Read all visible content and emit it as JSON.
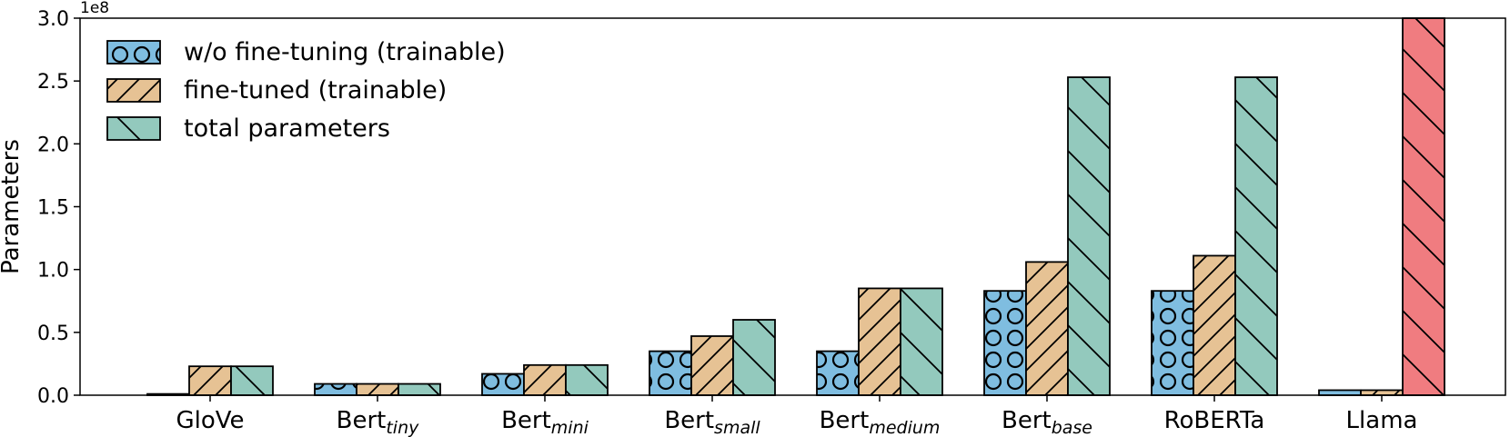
{
  "chart_data": {
    "type": "bar",
    "ylabel": "Parameters",
    "y_offset_label": "1e8",
    "ylim": [
      0,
      3.0
    ],
    "yticks": [
      "0.0",
      "0.5",
      "1.0",
      "1.5",
      "2.0",
      "2.5",
      "3.0"
    ],
    "grid": false,
    "legend_position": "top-left",
    "categories": [
      {
        "base": "GloVe",
        "sub": ""
      },
      {
        "base": "Bert",
        "sub": "tiny"
      },
      {
        "base": "Bert",
        "sub": "mini"
      },
      {
        "base": "Bert",
        "sub": "small"
      },
      {
        "base": "Bert",
        "sub": "medium"
      },
      {
        "base": "Bert",
        "sub": "base"
      },
      {
        "base": "RoBERTa",
        "sub": ""
      },
      {
        "base": "Llama",
        "sub": ""
      }
    ],
    "series": [
      {
        "name": "w/o fine-tuning (trainable)",
        "color": "#7fbde0",
        "hatch": "circles",
        "values": [
          0.01,
          0.09,
          0.17,
          0.35,
          0.35,
          0.83,
          0.83,
          0.04
        ]
      },
      {
        "name": "fine-tuned (trainable)",
        "color": "#e6c294",
        "hatch": "forward-diagonal",
        "values": [
          0.23,
          0.09,
          0.24,
          0.47,
          0.85,
          1.06,
          1.11,
          0.04
        ]
      },
      {
        "name": "total parameters",
        "color": "#93c9bd",
        "hatch": "back-diagonal",
        "values": [
          0.23,
          0.09,
          0.24,
          0.6,
          0.85,
          2.53,
          2.53,
          3.0
        ]
      }
    ],
    "highlight": {
      "category_index": 7,
      "series_index": 2,
      "color": "#f07c80"
    }
  }
}
